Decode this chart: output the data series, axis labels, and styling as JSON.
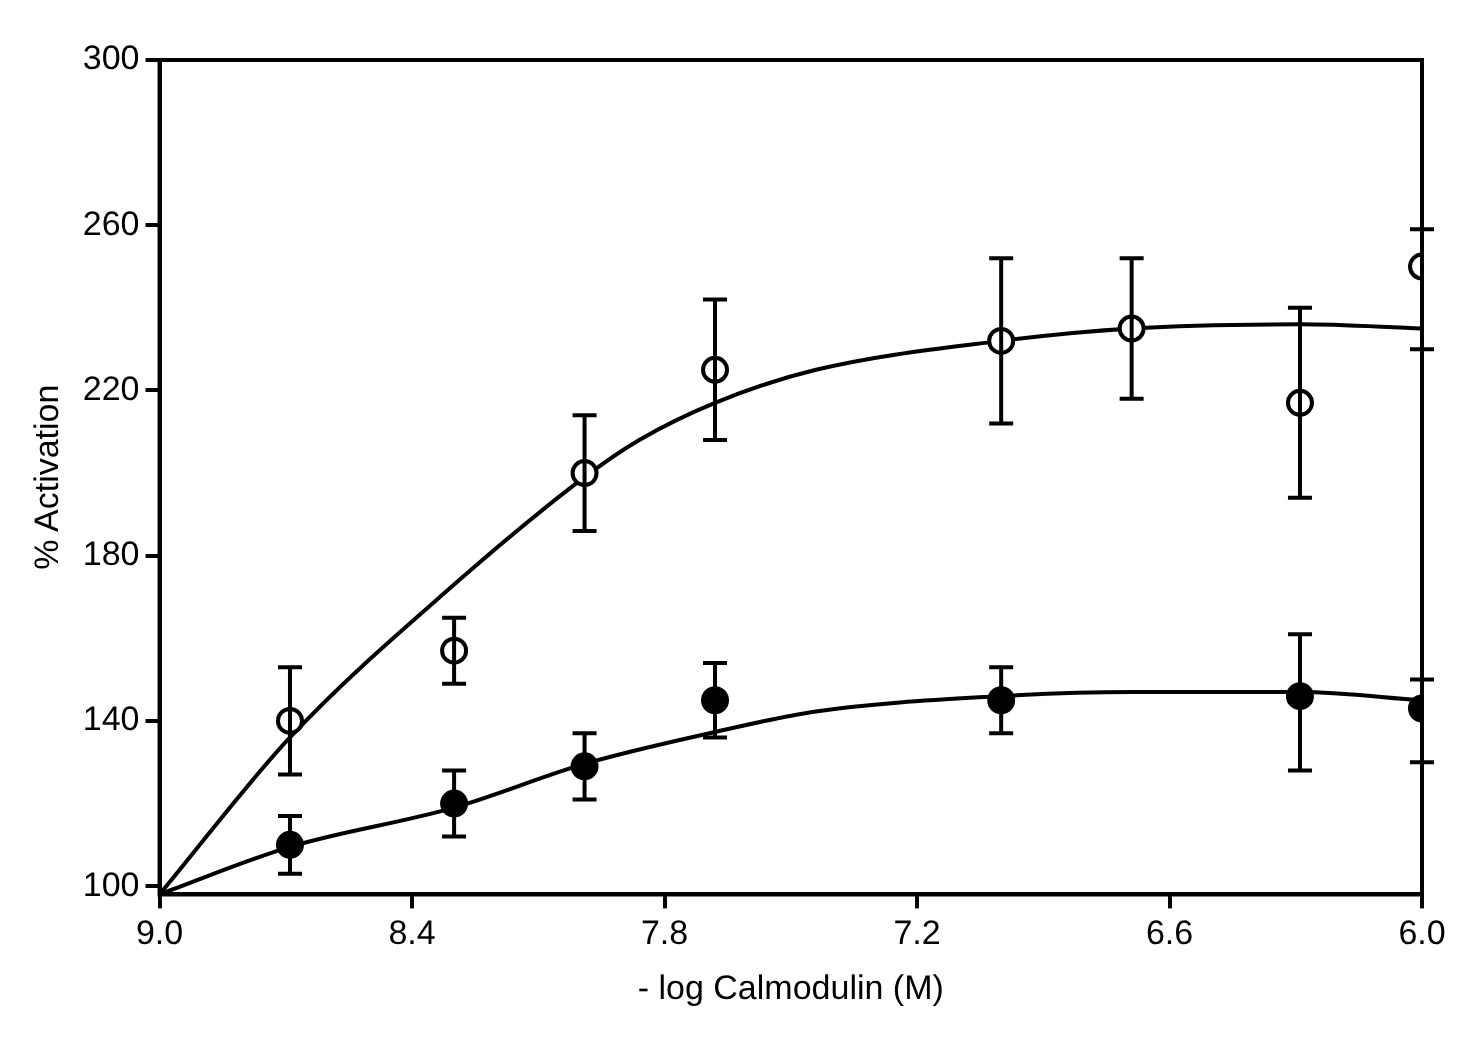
{
  "chart_data": {
    "type": "scatter",
    "xlabel": "- log Calmodulin (M)",
    "ylabel": "% Activation",
    "xlim": [
      9.0,
      6.0
    ],
    "xticks": [
      {
        "value": 9.0,
        "label": "9.0"
      },
      {
        "value": 8.4,
        "label": "8.4"
      },
      {
        "value": 7.8,
        "label": "7.8"
      },
      {
        "value": 7.2,
        "label": "7.2"
      },
      {
        "value": 6.6,
        "label": "6.6"
      },
      {
        "value": 6.0,
        "label": "6.0"
      }
    ],
    "ylim": [
      98,
      300
    ],
    "yticks": [
      100,
      140,
      180,
      220,
      260,
      300
    ],
    "grid": false,
    "legend": false,
    "marker": "circle",
    "series": [
      {
        "color": "#ffffff",
        "x": [
          8.69,
          8.3,
          7.99,
          7.68,
          7.0,
          6.69,
          6.29,
          6.0
        ],
        "values": [
          140,
          157,
          200,
          225,
          232,
          235,
          217,
          250
        ],
        "errors": [
          13,
          8,
          14,
          17,
          20,
          17,
          23,
          [
            230,
            259
          ]
        ]
      },
      {
        "color": "#000000",
        "x": [
          8.69,
          8.3,
          7.99,
          7.68,
          7.0,
          6.29,
          6.0
        ],
        "values": [
          110,
          120,
          129,
          145,
          145,
          146,
          143
        ],
        "errors": [
          7,
          8,
          8,
          9,
          8,
          [
            128,
            161
          ],
          [
            130,
            150
          ]
        ]
      },
      {
        "type": "line",
        "color": "#000000",
        "marker": "none",
        "x": [
          9.0,
          8.69,
          8.3,
          7.99,
          7.86,
          7.68,
          7.44,
          7.0,
          6.69,
          6.29,
          6.0
        ],
        "values": [
          98,
          136,
          173,
          199,
          208,
          217,
          225,
          232,
          235,
          236,
          235
        ]
      },
      {
        "type": "line",
        "color": "#000000",
        "marker": "none",
        "x": [
          9.0,
          8.69,
          8.3,
          7.99,
          7.68,
          7.44,
          7.0,
          6.69,
          6.29,
          6.0
        ],
        "values": [
          98,
          109.5,
          119,
          129.6,
          137.3,
          142.3,
          146,
          147,
          147,
          145
        ]
      }
    ]
  }
}
